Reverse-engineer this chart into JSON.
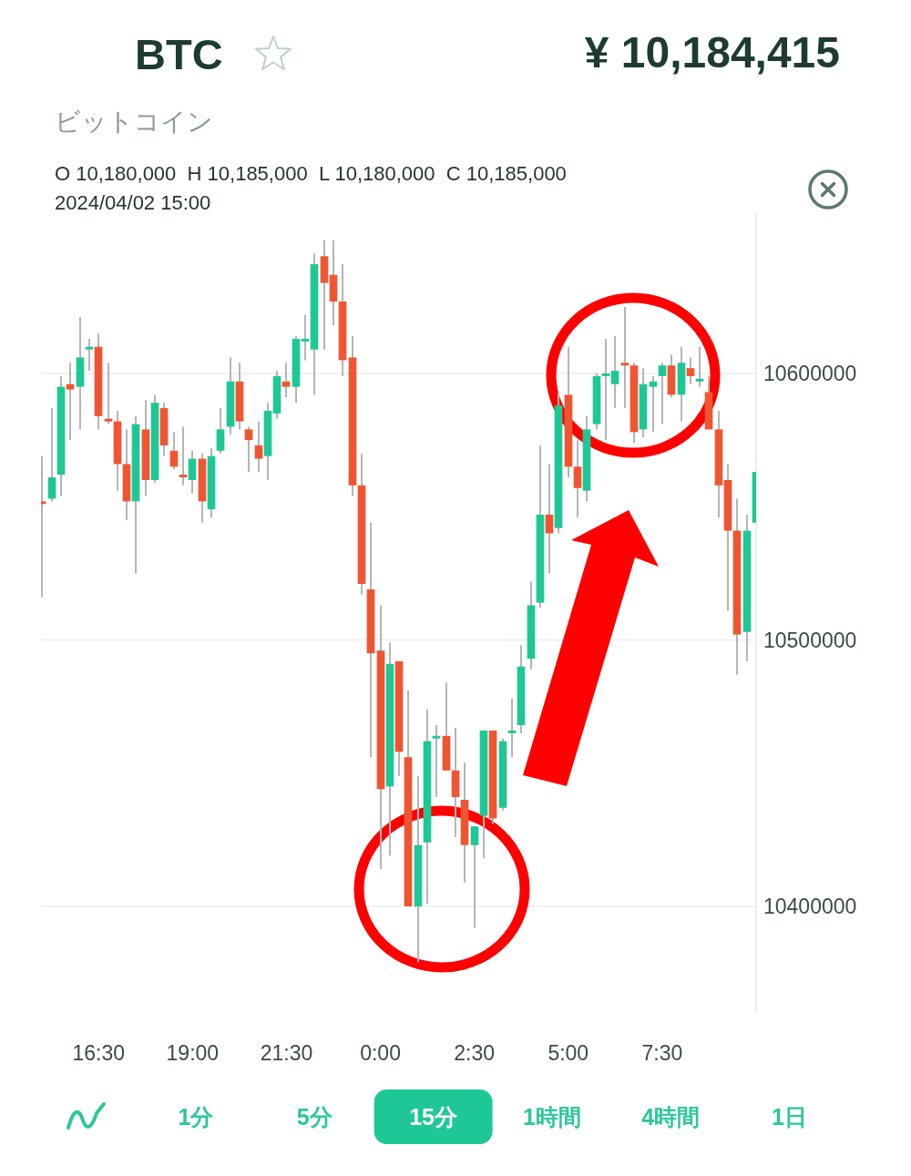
{
  "chart_data": {
    "type": "candlestick",
    "title": "BTC",
    "subtitle": "ビットコイン",
    "annotations": [
      "¥ 10,184,415",
      "O 10,180,000  H 10,185,000  L 10,180,000  C 10,185,000",
      "2024/04/02 15:00",
      "1分",
      "5分",
      "15分",
      "1時間",
      "4時間",
      "1日"
    ],
    "x": [
      "2024-04-02T15:00",
      "2024-04-02T15:15",
      "2024-04-02T15:30",
      "2024-04-02T15:45",
      "2024-04-02T16:00",
      "2024-04-02T16:15",
      "2024-04-02T16:30",
      "2024-04-02T16:45",
      "2024-04-02T17:00",
      "2024-04-02T17:15",
      "2024-04-02T17:30",
      "2024-04-02T17:45",
      "2024-04-02T18:00",
      "2024-04-02T18:15",
      "2024-04-02T18:30",
      "2024-04-02T18:45",
      "2024-04-02T19:00",
      "2024-04-02T19:15",
      "2024-04-02T19:30",
      "2024-04-02T19:45",
      "2024-04-02T20:00",
      "2024-04-02T20:15",
      "2024-04-02T20:30",
      "2024-04-02T20:45",
      "2024-04-02T21:00",
      "2024-04-02T21:15",
      "2024-04-02T21:30",
      "2024-04-02T21:45",
      "2024-04-02T22:00",
      "2024-04-02T22:15",
      "2024-04-02T22:30",
      "2024-04-02T22:45",
      "2024-04-02T23:00",
      "2024-04-02T23:15",
      "2024-04-02T23:30",
      "2024-04-02T23:45",
      "2024-04-03T00:00",
      "2024-04-03T00:15",
      "2024-04-03T00:30",
      "2024-04-03T00:45",
      "2024-04-03T01:00",
      "2024-04-03T01:15",
      "2024-04-03T01:30",
      "2024-04-03T01:45",
      "2024-04-03T02:00",
      "2024-04-03T02:15",
      "2024-04-03T02:30",
      "2024-04-03T02:45",
      "2024-04-03T03:00",
      "2024-04-03T03:15",
      "2024-04-03T03:30",
      "2024-04-03T03:45",
      "2024-04-03T04:00",
      "2024-04-03T04:15",
      "2024-04-03T04:30",
      "2024-04-03T04:45",
      "2024-04-03T05:00",
      "2024-04-03T05:15",
      "2024-04-03T05:30",
      "2024-04-03T05:45",
      "2024-04-03T06:00",
      "2024-04-03T06:15",
      "2024-04-03T06:30",
      "2024-04-03T06:45",
      "2024-04-03T07:00",
      "2024-04-03T07:15",
      "2024-04-03T07:30",
      "2024-04-03T07:45",
      "2024-04-03T08:00",
      "2024-04-03T08:15",
      "2024-04-03T08:30",
      "2024-04-03T08:45",
      "2024-04-03T09:00",
      "2024-04-03T09:15",
      "2024-04-03T09:30",
      "2024-04-03T09:45",
      "2024-04-03T10:00"
    ],
    "ohlc": [
      [
        10552000,
        10569000,
        10516000,
        10551000
      ],
      [
        10553000,
        10587000,
        10552000,
        10561000
      ],
      [
        10562000,
        10599000,
        10554000,
        10595000
      ],
      [
        10596000,
        10604000,
        10575000,
        10594000
      ],
      [
        10595000,
        10621000,
        10579000,
        10606000
      ],
      [
        10609000,
        10613000,
        10601000,
        10610000
      ],
      [
        10610000,
        10615000,
        10579000,
        10584000
      ],
      [
        10583000,
        10604000,
        10581000,
        10582000
      ],
      [
        10582000,
        10586000,
        10556000,
        10566000
      ],
      [
        10566000,
        10579000,
        10545000,
        10552000
      ],
      [
        10552000,
        10584000,
        10525000,
        10581000
      ],
      [
        10579000,
        10590000,
        10554000,
        10560000
      ],
      [
        10560000,
        10592000,
        10559000,
        10589000
      ],
      [
        10587000,
        10589000,
        10569000,
        10573000
      ],
      [
        10571000,
        10578000,
        10564000,
        10565000
      ],
      [
        10562000,
        10580000,
        10558000,
        10561000
      ],
      [
        10560000,
        10571000,
        10555000,
        10568000
      ],
      [
        10568000,
        10570000,
        10544000,
        10552000
      ],
      [
        10549000,
        10572000,
        10546000,
        10569000
      ],
      [
        10571000,
        10587000,
        10570000,
        10579000
      ],
      [
        10580000,
        10606000,
        10577000,
        10597000
      ],
      [
        10597000,
        10604000,
        10579000,
        10582000
      ],
      [
        10579000,
        10580000,
        10563000,
        10575000
      ],
      [
        10573000,
        10582000,
        10563000,
        10568000
      ],
      [
        10569000,
        10589000,
        10560000,
        10586000
      ],
      [
        10585000,
        10601000,
        10583000,
        10599000
      ],
      [
        10597000,
        10604000,
        10591000,
        10595000
      ],
      [
        10595000,
        10614000,
        10589000,
        10613000
      ],
      [
        10612000,
        10622000,
        10605000,
        10613000
      ],
      [
        10609000,
        10645000,
        10592000,
        10641000
      ],
      [
        10644000,
        10650000,
        10609000,
        10634000
      ],
      [
        10637000,
        10650000,
        10618000,
        10627000
      ],
      [
        10627000,
        10641000,
        10599000,
        10605000
      ],
      [
        10606000,
        10614000,
        10554000,
        10558000
      ],
      [
        10558000,
        10570000,
        10517000,
        10521000
      ],
      [
        10519000,
        10544000,
        10456000,
        10495000
      ],
      [
        10496000,
        10513000,
        10414000,
        10444000
      ],
      [
        10445000,
        10499000,
        10419000,
        10491000
      ],
      [
        10492000,
        10492000,
        10449000,
        10458000
      ],
      [
        10456000,
        10481000,
        10400000,
        10400000
      ],
      [
        10400000,
        10449000,
        10379000,
        10423000
      ],
      [
        10424000,
        10474000,
        10401000,
        10462000
      ],
      [
        10463000,
        10468000,
        10441000,
        10464000
      ],
      [
        10464000,
        10484000,
        10451000,
        10451000
      ],
      [
        10451000,
        10467000,
        10426000,
        10441000
      ],
      [
        10440000,
        10454000,
        10409000,
        10423000
      ],
      [
        10423000,
        10430000,
        10392000,
        10430000
      ],
      [
        10434000,
        10466000,
        10418000,
        10466000
      ],
      [
        10466000,
        10466000,
        10431000,
        10433000
      ],
      [
        10437000,
        10463000,
        10436000,
        10462000
      ],
      [
        10465000,
        10478000,
        10456000,
        10466000
      ],
      [
        10468000,
        10498000,
        10465000,
        10490000
      ],
      [
        10493000,
        10522000,
        10489000,
        10513000
      ],
      [
        10514000,
        10573000,
        10512000,
        10547000
      ],
      [
        10547000,
        10566000,
        10525000,
        10540000
      ],
      [
        10542000,
        10593000,
        10540000,
        10588000
      ],
      [
        10592000,
        10610000,
        10561000,
        10565000
      ],
      [
        10565000,
        10575000,
        10546000,
        10557000
      ],
      [
        10556000,
        10584000,
        10552000,
        10579000
      ],
      [
        10581000,
        10600000,
        10579000,
        10599000
      ],
      [
        10599000,
        10613000,
        10575000,
        10600000
      ],
      [
        10596000,
        10614000,
        10587000,
        10601000
      ],
      [
        10604000,
        10625000,
        10587000,
        10603000
      ],
      [
        10603000,
        10604000,
        10574000,
        10578000
      ],
      [
        10579000,
        10602000,
        10576000,
        10596000
      ],
      [
        10595000,
        10599000,
        10578000,
        10597000
      ],
      [
        10599000,
        10604000,
        10581000,
        10603000
      ],
      [
        10603000,
        10607000,
        10591000,
        10592000
      ],
      [
        10592000,
        10610000,
        10582000,
        10604000
      ],
      [
        10602000,
        10606000,
        10596000,
        10599000
      ],
      [
        10597000,
        10610000,
        10595000,
        10598000
      ],
      [
        10593000,
        10599000,
        10579000,
        10579000
      ],
      [
        10579000,
        10586000,
        10546000,
        10558000
      ],
      [
        10560000,
        10566000,
        10511000,
        10541000
      ],
      [
        10541000,
        10553000,
        10487000,
        10502000
      ],
      [
        10503000,
        10547000,
        10492000,
        10541000
      ],
      [
        10544000,
        10563000,
        10544000,
        10563000
      ]
    ],
    "colors": [
      "#f05532",
      "#1ec896",
      "#1ec896",
      "#f05532",
      "#1ec896",
      "#1ec896",
      "#f05532",
      "#f05532",
      "#f05532",
      "#f05532",
      "#1ec896",
      "#f05532",
      "#1ec896",
      "#f05532",
      "#f05532",
      "#f05532",
      "#1ec896",
      "#f05532",
      "#1ec896",
      "#1ec896",
      "#1ec896",
      "#f05532",
      "#f05532",
      "#f05532",
      "#1ec896",
      "#1ec896",
      "#f05532",
      "#1ec896",
      "#1ec896",
      "#1ec896",
      "#f05532",
      "#f05532",
      "#f05532",
      "#f05532",
      "#f05532",
      "#f05532",
      "#f05532",
      "#1ec896",
      "#f05532",
      "#f05532",
      "#1ec896",
      "#1ec896",
      "#1ec896",
      "#f05532",
      "#f05532",
      "#f05532",
      "#1ec896",
      "#1ec896",
      "#f05532",
      "#1ec896",
      "#1ec896",
      "#1ec896",
      "#1ec896",
      "#1ec896",
      "#f05532",
      "#1ec896",
      "#f05532",
      "#f05532",
      "#1ec896",
      "#1ec896",
      "#1ec896",
      "#1ec896",
      "#f05532",
      "#f05532",
      "#1ec896",
      "#1ec896",
      "#1ec896",
      "#f05532",
      "#1ec896",
      "#f05532",
      "#1ec896",
      "#f05532",
      "#f05532",
      "#f05532",
      "#f05532",
      "#1ec896",
      "#1ec896"
    ],
    "xlim": [
      "2024-04-02T14:58",
      "2024-04-03T10:00"
    ],
    "ylim": [
      10360000,
      10660000
    ],
    "xticks": [
      {
        "value": "2024-04-02T16:30",
        "label": "16:30"
      },
      {
        "value": "2024-04-02T19:00",
        "label": "19:00"
      },
      {
        "value": "2024-04-02T21:30",
        "label": "21:30"
      },
      {
        "value": "2024-04-03T00:00",
        "label": "0:00"
      },
      {
        "value": "2024-04-03T02:30",
        "label": "2:30"
      },
      {
        "value": "2024-04-03T05:00",
        "label": "5:00"
      },
      {
        "value": "2024-04-03T07:30",
        "label": "7:30"
      }
    ],
    "yticks": [
      10400000,
      10500000,
      10600000
    ],
    "grid": "y"
  }
}
